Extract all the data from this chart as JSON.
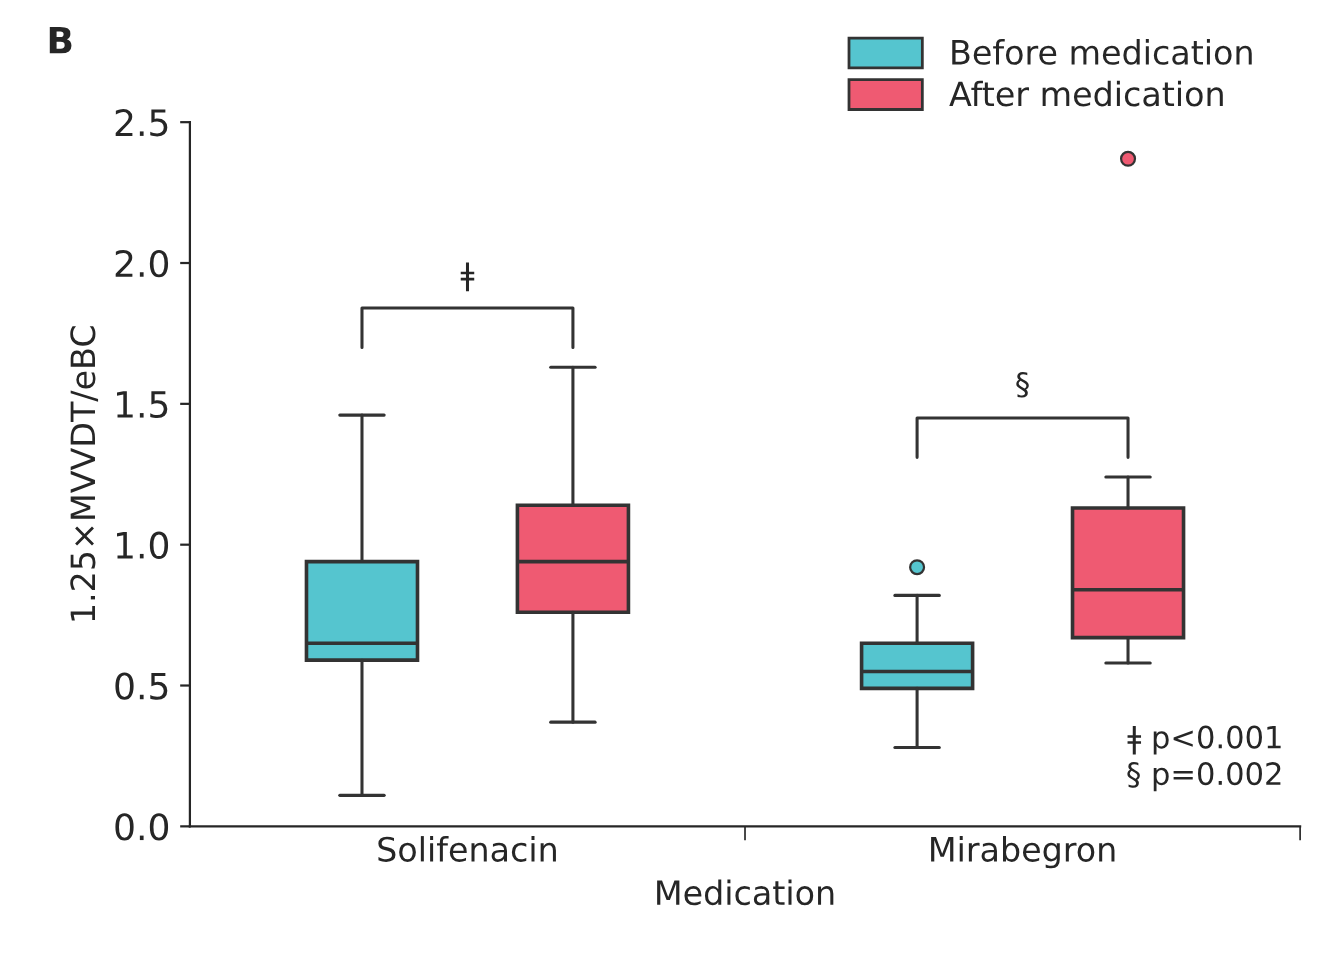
{
  "chart_data": {
    "type": "box",
    "xlabel": "Medication",
    "ylabel": "1.25×MVVDT/eBC",
    "categories": [
      "Solifenacin",
      "Mirabegron"
    ],
    "series": [
      {
        "name": "Before medication",
        "color": "#55c5cf",
        "boxes": [
          {
            "low": 0.11,
            "q1": 0.59,
            "median": 0.65,
            "q3": 0.94,
            "high": 1.46
          },
          {
            "low": 0.28,
            "q1": 0.49,
            "median": 0.55,
            "q3": 0.65,
            "high": 0.82,
            "outliers": [
              0.92
            ]
          }
        ]
      },
      {
        "name": "After medication",
        "color": "#ef5a72",
        "boxes": [
          {
            "low": 0.37,
            "q1": 0.76,
            "median": 0.94,
            "q3": 1.14,
            "high": 1.63
          },
          {
            "low": 0.58,
            "q1": 0.67,
            "median": 0.84,
            "q3": 1.13,
            "high": 1.24,
            "outliers": [
              2.37
            ]
          }
        ]
      }
    ],
    "ylim": [
      0,
      2.5
    ],
    "yticks": [
      {
        "value": 0,
        "label": "0.0"
      },
      {
        "value": 0.5,
        "label": "0.5"
      },
      {
        "value": 1,
        "label": "1.0"
      },
      {
        "value": 1.5,
        "label": "1.5"
      },
      {
        "value": 2,
        "label": "2.0"
      },
      {
        "value": 2.5,
        "label": "2.5"
      }
    ],
    "legend": "top right",
    "grid": false,
    "annotations": [
      "B",
      "ǂ",
      "§",
      "ǂ p<0.001\n§ p=0.002"
    ]
  }
}
